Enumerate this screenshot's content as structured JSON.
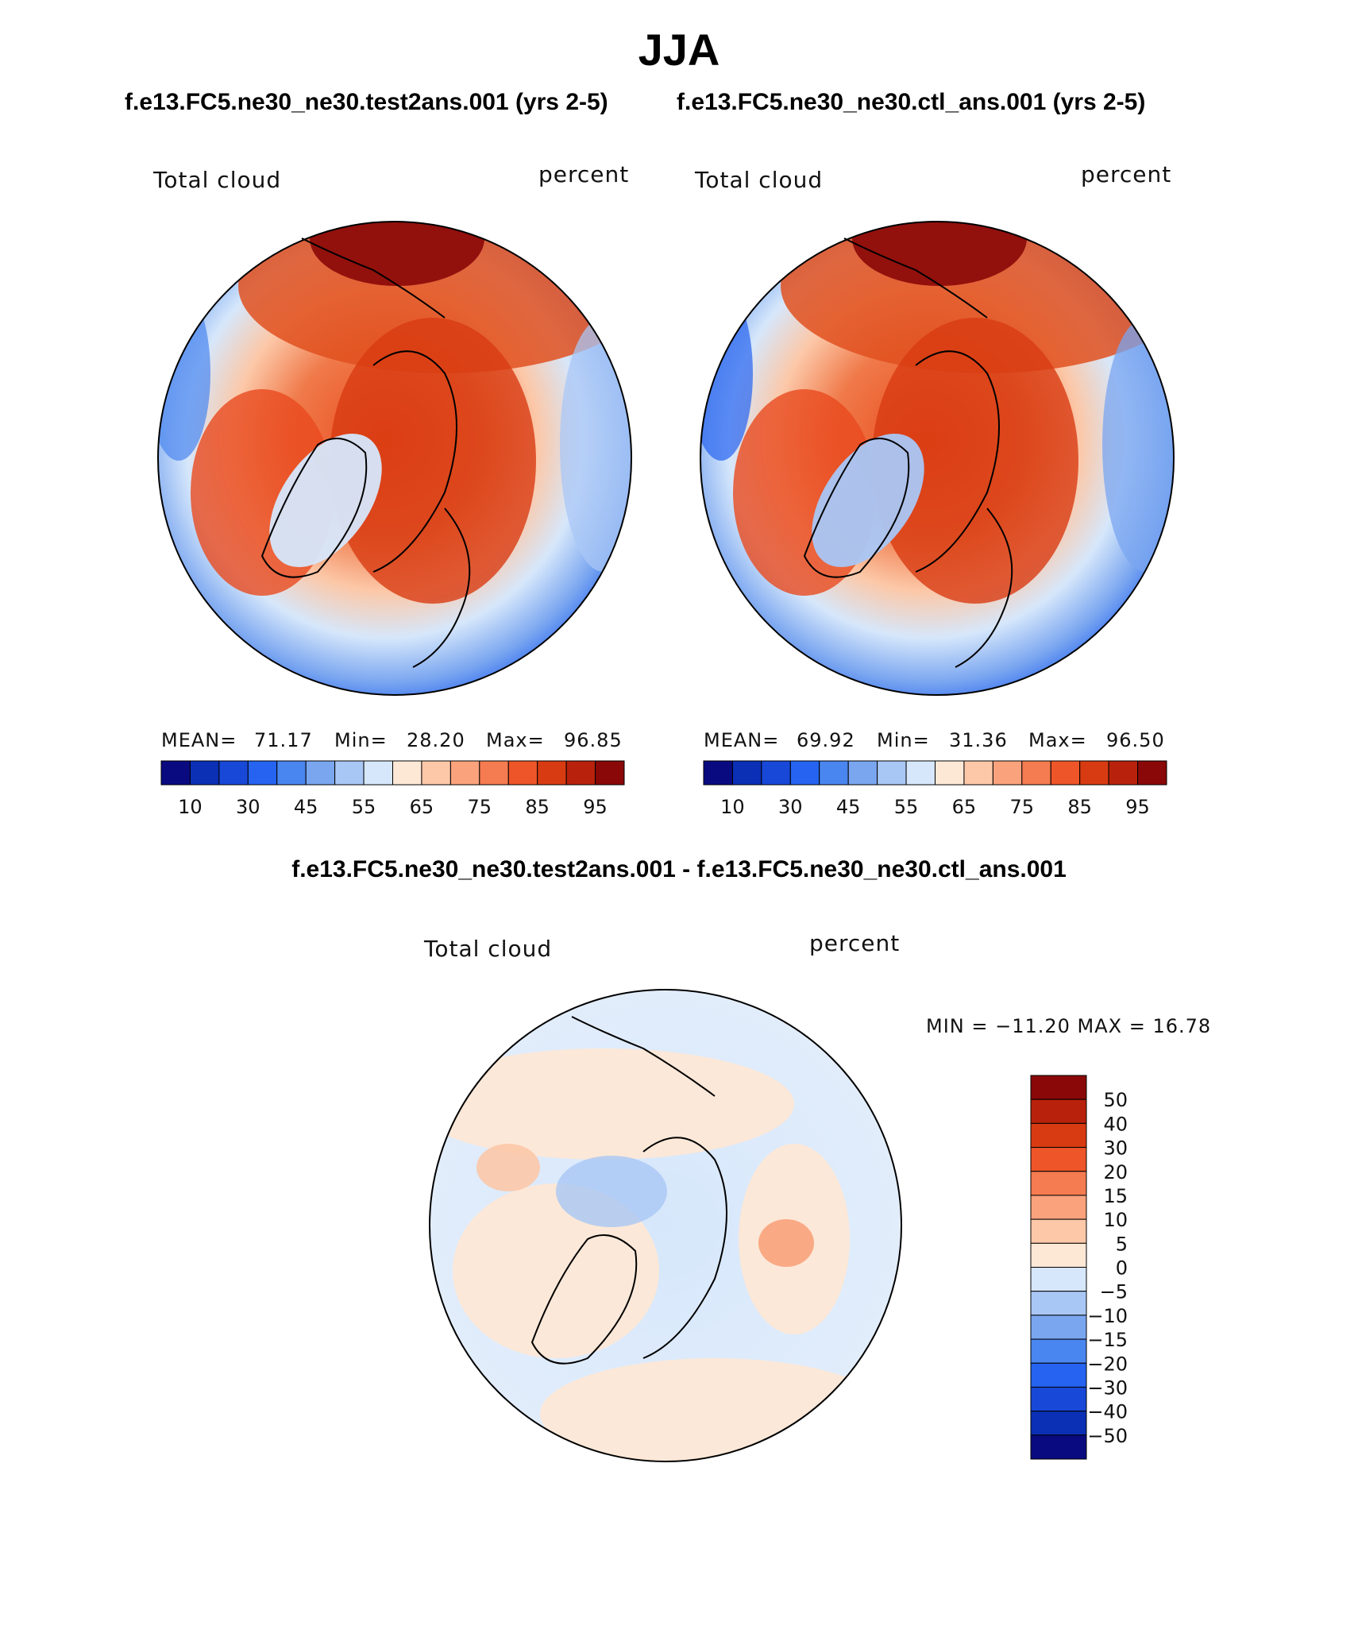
{
  "figure": {
    "title": "JJA",
    "diff_title": "f.e13.FC5.ne30_ne30.test2ans.001 - f.e13.FC5.ne30_ne30.ctl_ans.001"
  },
  "chart_data": [
    {
      "type": "heatmap",
      "title": "f.e13.FC5.ne30_ne30.test2ans.001 (yrs 2-5)",
      "variable": "Total cloud",
      "units": "percent",
      "projection": "north polar stereographic",
      "mean_label": "MEAN=",
      "mean": "71.17",
      "min_label": "Min=",
      "min": "28.20",
      "max_label": "Max=",
      "max": "96.85",
      "levels": [
        "10",
        "30",
        "45",
        "55",
        "65",
        "75",
        "85",
        "95"
      ],
      "colors": [
        "#0a0a80",
        "#0b2fb5",
        "#1848d8",
        "#2563f0",
        "#4a86f0",
        "#7aa6f0",
        "#a9c7f5",
        "#d6e7fb",
        "#fde8d6",
        "#fcc8a8",
        "#f9a27c",
        "#f57b50",
        "#ee5528",
        "#d83b12",
        "#b8220c",
        "#8a0808"
      ]
    },
    {
      "type": "heatmap",
      "title": "f.e13.FC5.ne30_ne30.ctl_ans.001 (yrs 2-5)",
      "variable": "Total cloud",
      "units": "percent",
      "projection": "north polar stereographic",
      "mean_label": "MEAN=",
      "mean": "69.92",
      "min_label": "Min=",
      "min": "31.36",
      "max_label": "Max=",
      "max": "96.50",
      "levels": [
        "10",
        "30",
        "45",
        "55",
        "65",
        "75",
        "85",
        "95"
      ],
      "colors": [
        "#0a0a80",
        "#0b2fb5",
        "#1848d8",
        "#2563f0",
        "#4a86f0",
        "#7aa6f0",
        "#a9c7f5",
        "#d6e7fb",
        "#fde8d6",
        "#fcc8a8",
        "#f9a27c",
        "#f57b50",
        "#ee5528",
        "#d83b12",
        "#b8220c",
        "#8a0808"
      ]
    },
    {
      "type": "heatmap",
      "title": "f.e13.FC5.ne30_ne30.test2ans.001 - f.e13.FC5.ne30_ne30.ctl_ans.001",
      "variable": "Total cloud",
      "units": "percent",
      "projection": "north polar stereographic",
      "minmax_text": "MIN = −11.20 MAX =   16.78",
      "min": -11.2,
      "max": 16.78,
      "levels": [
        "50",
        "40",
        "30",
        "20",
        "15",
        "10",
        "5",
        "0",
        "−5",
        "−10",
        "−15",
        "−20",
        "−30",
        "−40",
        "−50"
      ],
      "colors": [
        "#8a0808",
        "#b8220c",
        "#d83b12",
        "#ee5528",
        "#f57b50",
        "#f9a27c",
        "#fcc8a8",
        "#fde8d6",
        "#d6e7fb",
        "#a9c7f5",
        "#7aa6f0",
        "#4a86f0",
        "#2563f0",
        "#1848d8",
        "#0b2fb5",
        "#0a0a80"
      ]
    }
  ]
}
